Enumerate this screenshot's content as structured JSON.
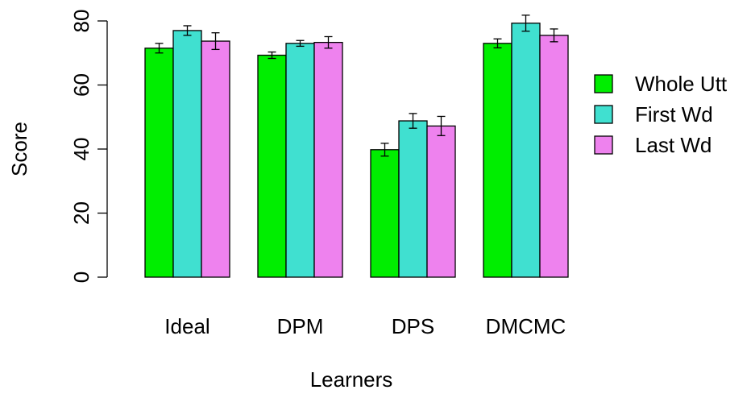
{
  "chart_data": {
    "type": "bar",
    "title": "",
    "xlabel": "Learners",
    "ylabel": "Score",
    "ylim": [
      0,
      80
    ],
    "yticks": [
      0,
      20,
      40,
      60,
      80
    ],
    "grid": false,
    "legend_position": "right",
    "categories": [
      "Ideal",
      "DPM",
      "DPS",
      "DMCMC"
    ],
    "series": [
      {
        "name": "Whole Utt",
        "color": "#00ee00",
        "values": [
          71.5,
          69.3,
          39.8,
          73.0
        ],
        "errors": [
          1.5,
          1.0,
          2.0,
          1.4
        ]
      },
      {
        "name": "First Wd",
        "color": "#40e0d0",
        "values": [
          77.0,
          73.0,
          48.8,
          79.3
        ],
        "errors": [
          1.5,
          0.9,
          2.3,
          2.5
        ]
      },
      {
        "name": "Last Wd",
        "color": "#ee82ee",
        "values": [
          73.7,
          73.3,
          47.2,
          75.5
        ],
        "errors": [
          2.6,
          1.8,
          3.0,
          2.0
        ]
      }
    ]
  }
}
